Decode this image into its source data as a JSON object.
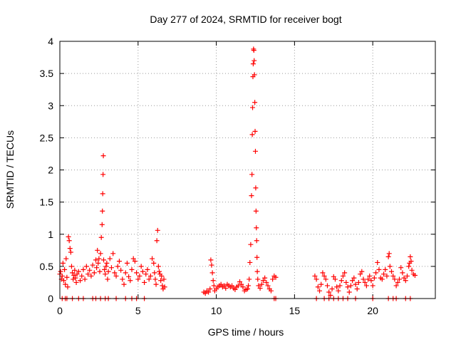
{
  "chart_data": {
    "type": "scatter",
    "title": "Day 277 of 2024, SRMTID for receiver bogt",
    "xlabel": "GPS time / hours",
    "ylabel": "SRMTID / TECUs",
    "xlim": [
      0,
      24
    ],
    "ylim": [
      0,
      4
    ],
    "xticks": [
      0,
      5,
      10,
      15,
      20
    ],
    "yticks": [
      0,
      0.5,
      1,
      1.5,
      2,
      2.5,
      3,
      3.5,
      4
    ],
    "xtick_labels": [
      "0",
      "5",
      "10",
      "15",
      "20"
    ],
    "ytick_labels": [
      "0",
      "0.5",
      "1",
      "1.5",
      "2",
      "2.5",
      "3",
      "3.5",
      "4"
    ],
    "grid": true,
    "marker": "+",
    "color": "#ff0000",
    "series": [
      {
        "name": "SRMTID",
        "points": [
          [
            0.0,
            0.38
          ],
          [
            0.05,
            0.42
          ],
          [
            0.1,
            0.3
          ],
          [
            0.15,
            0.35
          ],
          [
            0.2,
            0.55
          ],
          [
            0.25,
            0.28
          ],
          [
            0.3,
            0.45
          ],
          [
            0.35,
            0.22
          ],
          [
            0.4,
            0.62
          ],
          [
            0.45,
            0.33
          ],
          [
            0.5,
            0.18
          ],
          [
            0.55,
            0.96
          ],
          [
            0.6,
            0.9
          ],
          [
            0.65,
            0.78
          ],
          [
            0.7,
            0.72
          ],
          [
            0.75,
            0.5
          ],
          [
            0.8,
            0.4
          ],
          [
            0.85,
            0.3
          ],
          [
            0.9,
            0.36
          ],
          [
            0.95,
            0.44
          ],
          [
            1.0,
            0.32
          ],
          [
            1.05,
            0.25
          ],
          [
            1.1,
            0.38
          ],
          [
            1.2,
            0.42
          ],
          [
            1.3,
            0.28
          ],
          [
            1.4,
            0.35
          ],
          [
            1.5,
            0.45
          ],
          [
            1.6,
            0.3
          ],
          [
            1.7,
            0.5
          ],
          [
            1.8,
            0.38
          ],
          [
            1.9,
            0.44
          ],
          [
            2.0,
            0.35
          ],
          [
            2.1,
            0.52
          ],
          [
            2.2,
            0.4
          ],
          [
            2.3,
            0.6
          ],
          [
            2.35,
            0.48
          ],
          [
            2.4,
            0.75
          ],
          [
            2.45,
            0.55
          ],
          [
            2.5,
            0.62
          ],
          [
            2.55,
            0.42
          ],
          [
            2.6,
            0.7
          ],
          [
            2.65,
            0.95
          ],
          [
            2.7,
            1.15
          ],
          [
            2.72,
            1.36
          ],
          [
            2.74,
            1.63
          ],
          [
            2.76,
            1.93
          ],
          [
            2.78,
            2.22
          ],
          [
            2.8,
            0.6
          ],
          [
            2.85,
            0.45
          ],
          [
            2.9,
            0.38
          ],
          [
            2.95,
            0.5
          ],
          [
            3.0,
            0.55
          ],
          [
            3.05,
            0.3
          ],
          [
            3.1,
            0.42
          ],
          [
            3.2,
            0.62
          ],
          [
            3.3,
            0.48
          ],
          [
            3.4,
            0.7
          ],
          [
            3.5,
            0.4
          ],
          [
            3.6,
            0.35
          ],
          [
            3.7,
            0.5
          ],
          [
            3.8,
            0.58
          ],
          [
            3.9,
            0.44
          ],
          [
            4.0,
            0.3
          ],
          [
            4.1,
            0.22
          ],
          [
            4.2,
            0.4
          ],
          [
            4.3,
            0.55
          ],
          [
            4.4,
            0.34
          ],
          [
            4.5,
            0.28
          ],
          [
            4.6,
            0.45
          ],
          [
            4.7,
            0.62
          ],
          [
            4.8,
            0.58
          ],
          [
            4.9,
            0.4
          ],
          [
            5.0,
            0.3
          ],
          [
            5.1,
            0.35
          ],
          [
            5.2,
            0.5
          ],
          [
            5.3,
            0.42
          ],
          [
            5.4,
            0.25
          ],
          [
            5.5,
            0.38
          ],
          [
            5.6,
            0.45
          ],
          [
            5.7,
            0.3
          ],
          [
            5.8,
            0.35
          ],
          [
            5.9,
            0.62
          ],
          [
            6.0,
            0.55
          ],
          [
            6.05,
            0.4
          ],
          [
            6.1,
            0.3
          ],
          [
            6.15,
            0.22
          ],
          [
            6.2,
            0.9
          ],
          [
            6.25,
            1.06
          ],
          [
            6.3,
            0.5
          ],
          [
            6.35,
            0.42
          ],
          [
            6.4,
            0.38
          ],
          [
            6.45,
            0.28
          ],
          [
            6.5,
            0.35
          ],
          [
            6.55,
            0.2
          ],
          [
            6.6,
            0.15
          ],
          [
            6.65,
            0.3
          ],
          [
            6.7,
            0.18
          ],
          [
            0.15,
            0.0
          ],
          [
            0.35,
            0.0
          ],
          [
            0.45,
            0.0
          ],
          [
            0.8,
            0.0
          ],
          [
            1.2,
            0.0
          ],
          [
            1.5,
            0.0
          ],
          [
            2.1,
            0.0
          ],
          [
            2.3,
            0.0
          ],
          [
            2.6,
            0.0
          ],
          [
            2.9,
            0.0
          ],
          [
            3.1,
            0.0
          ],
          [
            3.6,
            0.0
          ],
          [
            4.2,
            0.0
          ],
          [
            4.6,
            0.0
          ],
          [
            4.9,
            0.0
          ],
          [
            5.4,
            0.0
          ],
          [
            9.2,
            0.1
          ],
          [
            9.3,
            0.08
          ],
          [
            9.4,
            0.12
          ],
          [
            9.5,
            0.1
          ],
          [
            9.6,
            0.15
          ],
          [
            9.65,
            0.6
          ],
          [
            9.7,
            0.52
          ],
          [
            9.75,
            0.4
          ],
          [
            9.8,
            0.28
          ],
          [
            9.85,
            0.2
          ],
          [
            9.9,
            0.12
          ],
          [
            10.0,
            0.15
          ],
          [
            10.1,
            0.18
          ],
          [
            10.2,
            0.2
          ],
          [
            10.3,
            0.22
          ],
          [
            10.4,
            0.18
          ],
          [
            10.5,
            0.2
          ],
          [
            10.6,
            0.16
          ],
          [
            10.7,
            0.22
          ],
          [
            10.8,
            0.2
          ],
          [
            10.9,
            0.18
          ],
          [
            11.0,
            0.2
          ],
          [
            11.1,
            0.16
          ],
          [
            11.2,
            0.14
          ],
          [
            11.3,
            0.18
          ],
          [
            11.4,
            0.2
          ],
          [
            11.5,
            0.26
          ],
          [
            11.6,
            0.22
          ],
          [
            11.7,
            0.18
          ],
          [
            11.8,
            0.12
          ],
          [
            11.9,
            0.14
          ],
          [
            12.0,
            0.15
          ],
          [
            12.05,
            0.2
          ],
          [
            12.1,
            0.3
          ],
          [
            12.15,
            0.56
          ],
          [
            12.2,
            0.84
          ],
          [
            12.25,
            1.6
          ],
          [
            12.28,
            1.93
          ],
          [
            12.3,
            2.55
          ],
          [
            12.32,
            2.97
          ],
          [
            12.34,
            3.45
          ],
          [
            12.36,
            3.65
          ],
          [
            12.38,
            3.88
          ],
          [
            12.4,
            3.86
          ],
          [
            12.42,
            3.7
          ],
          [
            12.44,
            3.48
          ],
          [
            12.46,
            3.05
          ],
          [
            12.48,
            2.6
          ],
          [
            12.5,
            2.29
          ],
          [
            12.52,
            1.72
          ],
          [
            12.54,
            1.36
          ],
          [
            12.56,
            1.1
          ],
          [
            12.58,
            0.9
          ],
          [
            12.6,
            0.64
          ],
          [
            12.62,
            0.42
          ],
          [
            12.65,
            0.3
          ],
          [
            12.7,
            0.2
          ],
          [
            12.8,
            0.16
          ],
          [
            12.9,
            0.22
          ],
          [
            13.0,
            0.28
          ],
          [
            13.1,
            0.32
          ],
          [
            13.2,
            0.25
          ],
          [
            13.3,
            0.2
          ],
          [
            13.4,
            0.15
          ],
          [
            13.5,
            0.12
          ],
          [
            13.6,
            0.3
          ],
          [
            13.7,
            0.35
          ],
          [
            13.8,
            0.33
          ],
          [
            13.7,
            0.0
          ],
          [
            13.8,
            0.0
          ],
          [
            16.3,
            0.35
          ],
          [
            16.4,
            0.3
          ],
          [
            16.5,
            0.18
          ],
          [
            16.6,
            0.12
          ],
          [
            16.7,
            0.22
          ],
          [
            16.8,
            0.4
          ],
          [
            16.9,
            0.35
          ],
          [
            17.0,
            0.3
          ],
          [
            17.1,
            0.2
          ],
          [
            17.2,
            0.1
          ],
          [
            17.3,
            0.05
          ],
          [
            17.4,
            0.15
          ],
          [
            17.5,
            0.34
          ],
          [
            17.6,
            0.3
          ],
          [
            17.7,
            0.18
          ],
          [
            17.8,
            0.12
          ],
          [
            17.9,
            0.2
          ],
          [
            18.0,
            0.28
          ],
          [
            18.1,
            0.35
          ],
          [
            18.2,
            0.4
          ],
          [
            18.3,
            0.25
          ],
          [
            18.4,
            0.18
          ],
          [
            18.5,
            0.1
          ],
          [
            18.6,
            0.2
          ],
          [
            18.7,
            0.28
          ],
          [
            18.8,
            0.32
          ],
          [
            18.9,
            0.22
          ],
          [
            19.0,
            0.15
          ],
          [
            19.1,
            0.25
          ],
          [
            19.2,
            0.38
          ],
          [
            19.3,
            0.42
          ],
          [
            19.4,
            0.3
          ],
          [
            19.5,
            0.25
          ],
          [
            19.6,
            0.2
          ],
          [
            19.7,
            0.3
          ],
          [
            19.8,
            0.35
          ],
          [
            19.9,
            0.28
          ],
          [
            20.0,
            0.2
          ],
          [
            20.1,
            0.32
          ],
          [
            20.2,
            0.4
          ],
          [
            20.3,
            0.56
          ],
          [
            20.4,
            0.45
          ],
          [
            20.5,
            0.32
          ],
          [
            20.6,
            0.3
          ],
          [
            20.7,
            0.38
          ],
          [
            20.8,
            0.45
          ],
          [
            20.9,
            0.35
          ],
          [
            21.0,
            0.65
          ],
          [
            21.05,
            0.7
          ],
          [
            21.1,
            0.5
          ],
          [
            21.2,
            0.42
          ],
          [
            21.3,
            0.35
          ],
          [
            21.4,
            0.3
          ],
          [
            21.5,
            0.2
          ],
          [
            21.6,
            0.25
          ],
          [
            21.7,
            0.3
          ],
          [
            21.8,
            0.48
          ],
          [
            21.9,
            0.4
          ],
          [
            22.0,
            0.32
          ],
          [
            22.1,
            0.28
          ],
          [
            22.2,
            0.35
          ],
          [
            22.3,
            0.5
          ],
          [
            22.35,
            0.55
          ],
          [
            22.4,
            0.65
          ],
          [
            22.45,
            0.58
          ],
          [
            22.5,
            0.44
          ],
          [
            22.6,
            0.38
          ],
          [
            22.7,
            0.36
          ],
          [
            16.4,
            0.0
          ],
          [
            16.9,
            0.0
          ],
          [
            17.2,
            0.0
          ],
          [
            17.5,
            0.0
          ],
          [
            17.8,
            0.0
          ],
          [
            18.1,
            0.0
          ],
          [
            18.4,
            0.0
          ],
          [
            18.9,
            0.0
          ],
          [
            20.0,
            0.0
          ],
          [
            21.0,
            0.0
          ],
          [
            21.3,
            0.0
          ],
          [
            21.5,
            0.0
          ],
          [
            22.1,
            0.0
          ],
          [
            22.4,
            0.0
          ]
        ]
      }
    ]
  }
}
